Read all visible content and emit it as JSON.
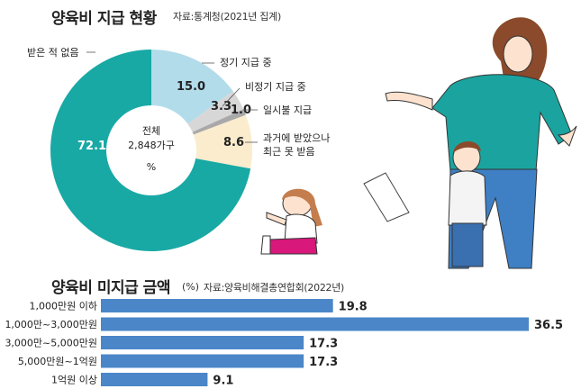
{
  "chart_data": [
    {
      "type": "pie",
      "title": "양육비 지급 현황",
      "source": "자료:통계청(2021년 집계)",
      "center_label": [
        "전체",
        "2,848가구",
        "%"
      ],
      "slices": [
        {
          "label": "정기 지급 중",
          "value": 15.0,
          "value_text": "15.0",
          "color": "#b3dceb"
        },
        {
          "label": "비정기 지급 중",
          "value": 3.3,
          "value_text": "3.3",
          "color": "#d7d7d7"
        },
        {
          "label": "일시불 지급",
          "value": 1.0,
          "value_text": "1.0",
          "color": "#a9a9a9"
        },
        {
          "label": "과거에 받았으나 최근 못 받음",
          "label_lines": [
            "과거에 받았으나",
            "최근 못 받음"
          ],
          "value": 8.6,
          "value_text": "8.6",
          "color": "#faeccd"
        },
        {
          "label": "받은 적 없음",
          "value": 72.1,
          "value_text": "72.1",
          "color": "#18a9a5"
        }
      ]
    },
    {
      "type": "bar",
      "orientation": "horizontal",
      "title": "양육비 미지급 금액",
      "unit": "(%)",
      "source": "자료:양육비해결총연합회(2022년)",
      "categories": [
        "1,000만원 이하",
        "1,000만~3,000만원",
        "3,000만~5,000만원",
        "5,000만원~1억원",
        "1억원 이상"
      ],
      "values": [
        19.8,
        36.5,
        17.3,
        17.3,
        9.1
      ],
      "value_labels": [
        "19.8",
        "36.5",
        "17.3",
        "17.3",
        "9.1"
      ],
      "color": "#4a86c8"
    }
  ]
}
